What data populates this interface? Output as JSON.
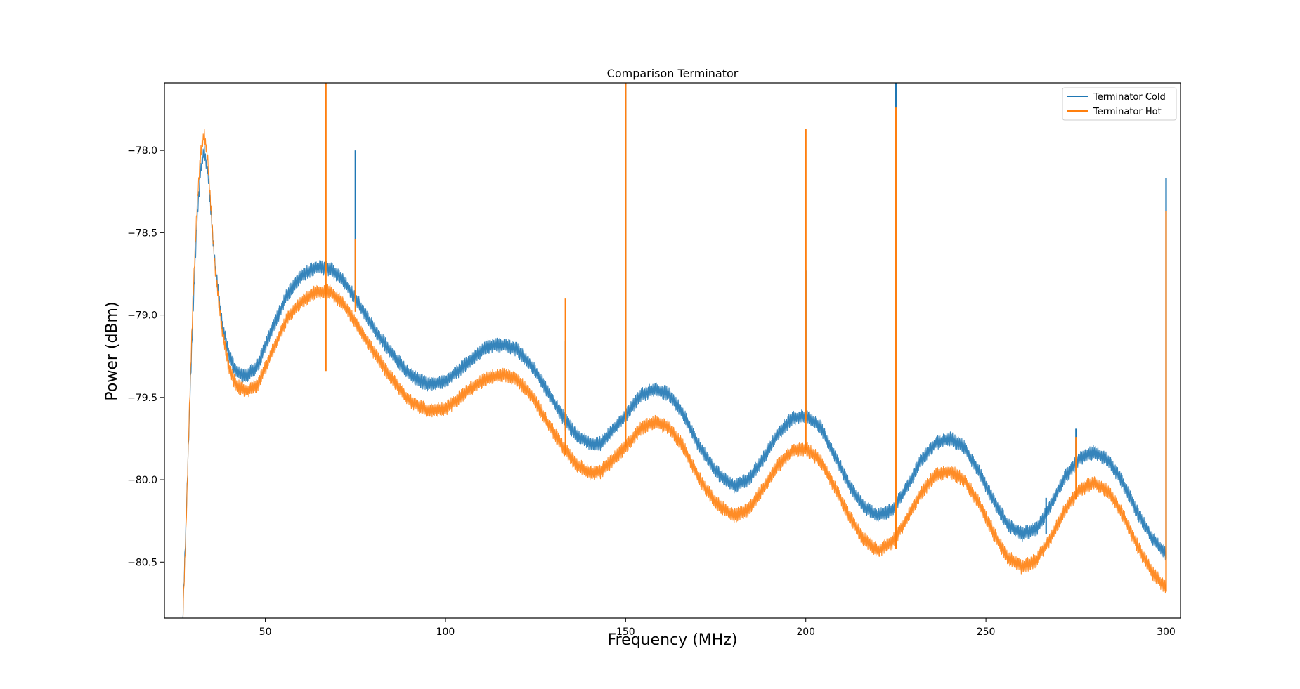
{
  "chart_data": {
    "type": "line",
    "title": "Comparison Terminator",
    "xlabel": "Frequency (MHz)",
    "ylabel": "Power (dBm)",
    "xlim": [
      22,
      304
    ],
    "ylim": [
      -80.84,
      -77.59
    ],
    "xticks": [
      50,
      100,
      150,
      200,
      250,
      300
    ],
    "yticks": [
      -78.0,
      -78.5,
      -79.0,
      -79.5,
      -80.0,
      -80.5
    ],
    "ytick_labels": [
      "−78.0",
      "−78.5",
      "−79.0",
      "−79.5",
      "−80.0",
      "−80.5"
    ],
    "grid": false,
    "legend_position": "top-right",
    "noise_band_halfwidth_db": 0.045,
    "series": [
      {
        "name": "Terminator Cold",
        "color": "#1f77b4",
        "x": [
          27,
          28,
          29,
          30,
          31,
          32,
          33,
          34,
          35,
          36,
          38,
          40,
          42,
          45,
          48,
          52,
          56,
          60,
          64,
          68,
          72,
          76,
          80,
          85,
          90,
          95,
          100,
          104,
          108,
          112,
          116,
          120,
          124,
          128,
          132,
          136,
          140,
          143,
          146,
          150,
          154,
          158,
          162,
          166,
          170,
          175,
          180,
          184,
          188,
          192,
          196,
          200,
          204,
          208,
          212,
          216,
          220,
          224,
          228,
          232,
          236,
          240,
          244,
          248,
          252,
          256,
          260,
          264,
          268,
          272,
          276,
          280,
          284,
          288,
          292,
          296,
          300
        ],
        "y": [
          -80.9,
          -80.25,
          -79.55,
          -78.95,
          -78.45,
          -78.12,
          -78.0,
          -78.12,
          -78.4,
          -78.68,
          -79.05,
          -79.25,
          -79.35,
          -79.37,
          -79.3,
          -79.08,
          -78.88,
          -78.76,
          -78.71,
          -78.72,
          -78.8,
          -78.93,
          -79.08,
          -79.23,
          -79.36,
          -79.42,
          -79.4,
          -79.33,
          -79.25,
          -79.19,
          -79.18,
          -79.21,
          -79.31,
          -79.45,
          -79.6,
          -79.72,
          -79.78,
          -79.78,
          -79.71,
          -79.61,
          -79.49,
          -79.45,
          -79.48,
          -79.6,
          -79.78,
          -79.95,
          -80.04,
          -80.0,
          -79.88,
          -79.73,
          -79.63,
          -79.61,
          -79.68,
          -79.85,
          -80.03,
          -80.16,
          -80.22,
          -80.18,
          -80.05,
          -79.88,
          -79.78,
          -79.75,
          -79.8,
          -79.95,
          -80.12,
          -80.27,
          -80.33,
          -80.3,
          -80.15,
          -79.98,
          -79.87,
          -79.83,
          -79.88,
          -80.02,
          -80.2,
          -80.35,
          -80.45
        ]
      },
      {
        "name": "Terminator Hot",
        "color": "#ff7f0e",
        "x": [
          27,
          28,
          29,
          30,
          31,
          32,
          33,
          34,
          35,
          36,
          38,
          40,
          42,
          45,
          48,
          52,
          56,
          60,
          64,
          68,
          72,
          76,
          80,
          85,
          90,
          95,
          100,
          104,
          108,
          112,
          116,
          120,
          124,
          128,
          132,
          136,
          140,
          143,
          146,
          150,
          154,
          158,
          162,
          166,
          170,
          175,
          180,
          184,
          188,
          192,
          196,
          200,
          204,
          208,
          212,
          216,
          220,
          224,
          228,
          232,
          236,
          240,
          244,
          248,
          252,
          256,
          260,
          264,
          268,
          272,
          276,
          280,
          284,
          288,
          292,
          296,
          300
        ],
        "y": [
          -80.9,
          -80.3,
          -79.5,
          -78.85,
          -78.35,
          -78.02,
          -77.9,
          -78.05,
          -78.38,
          -78.7,
          -79.1,
          -79.33,
          -79.43,
          -79.46,
          -79.42,
          -79.22,
          -79.02,
          -78.92,
          -78.86,
          -78.86,
          -78.94,
          -79.08,
          -79.22,
          -79.38,
          -79.52,
          -79.58,
          -79.57,
          -79.5,
          -79.43,
          -79.38,
          -79.36,
          -79.39,
          -79.49,
          -79.64,
          -79.78,
          -79.9,
          -79.96,
          -79.95,
          -79.89,
          -79.8,
          -79.69,
          -79.65,
          -79.68,
          -79.8,
          -79.98,
          -80.14,
          -80.22,
          -80.18,
          -80.06,
          -79.92,
          -79.83,
          -79.81,
          -79.88,
          -80.04,
          -80.22,
          -80.36,
          -80.43,
          -80.38,
          -80.24,
          -80.08,
          -79.97,
          -79.95,
          -80.0,
          -80.14,
          -80.32,
          -80.47,
          -80.53,
          -80.49,
          -80.35,
          -80.18,
          -80.06,
          -80.02,
          -80.07,
          -80.21,
          -80.4,
          -80.56,
          -80.66
        ]
      }
    ],
    "spikes": [
      {
        "x": 66.8,
        "from": -79.34,
        "to": -77.59,
        "series": "Terminator Hot"
      },
      {
        "x": 75.0,
        "from": -78.9,
        "to": -78.0,
        "series": "Terminator Cold"
      },
      {
        "x": 75.0,
        "from": -78.98,
        "to": -78.54,
        "series": "Terminator Hot"
      },
      {
        "x": 133.3,
        "from": -79.7,
        "to": -79.16,
        "series": "Terminator Cold"
      },
      {
        "x": 133.3,
        "from": -79.85,
        "to": -78.9,
        "series": "Terminator Hot"
      },
      {
        "x": 150.0,
        "from": -79.62,
        "to": -77.59,
        "series": "Terminator Cold"
      },
      {
        "x": 150.0,
        "from": -79.8,
        "to": -77.59,
        "series": "Terminator Hot"
      },
      {
        "x": 200.0,
        "from": -79.62,
        "to": -78.73,
        "series": "Terminator Cold"
      },
      {
        "x": 200.0,
        "from": -79.82,
        "to": -77.87,
        "series": "Terminator Hot"
      },
      {
        "x": 225.0,
        "from": -80.2,
        "to": -77.59,
        "series": "Terminator Cold"
      },
      {
        "x": 225.0,
        "from": -80.42,
        "to": -77.74,
        "series": "Terminator Hot"
      },
      {
        "x": 266.7,
        "from": -80.33,
        "to": -80.11,
        "series": "Terminator Cold"
      },
      {
        "x": 275.0,
        "from": -79.95,
        "to": -79.69,
        "series": "Terminator Cold"
      },
      {
        "x": 275.0,
        "from": -80.12,
        "to": -79.74,
        "series": "Terminator Hot"
      },
      {
        "x": 300.0,
        "from": -80.48,
        "to": -78.17,
        "series": "Terminator Cold"
      },
      {
        "x": 300.0,
        "from": -80.68,
        "to": -78.37,
        "series": "Terminator Hot"
      }
    ]
  }
}
